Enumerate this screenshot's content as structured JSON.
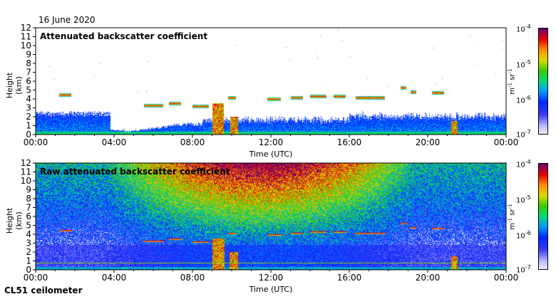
{
  "date": "16 June 2020",
  "instrument": "CL51 ceilometer",
  "chart_data": [
    {
      "type": "heatmap",
      "title": "Attenuated backscatter coefficient",
      "xlabel": "Time (UTC)",
      "ylabel": "Height (km)",
      "xticks": [
        "00:00",
        "04:00",
        "08:00",
        "12:00",
        "16:00",
        "20:00",
        "00:00"
      ],
      "xlim_hours": [
        0,
        24
      ],
      "ylim_km": [
        0,
        12
      ],
      "yticks": [
        "0",
        "1",
        "2",
        "3",
        "4",
        "5",
        "6",
        "7",
        "8",
        "9",
        "10",
        "11",
        "12"
      ],
      "colorbar": {
        "label_base": "m",
        "label_exp1": "-1",
        "label_mid": " sr",
        "label_exp2": "-1",
        "ticks": [
          {
            "base": "10",
            "exp": "-4"
          },
          {
            "base": "10",
            "exp": "-5"
          },
          {
            "base": "10",
            "exp": "-6"
          },
          {
            "base": "10",
            "exp": "-7"
          }
        ],
        "log_range": [
          -7,
          -4
        ]
      },
      "features": {
        "boundary_layer_top_km": 2.5,
        "clouds": [
          {
            "t0": 1.2,
            "t1": 1.8,
            "h": 4.5
          },
          {
            "t0": 5.5,
            "t1": 6.5,
            "h": 3.3
          },
          {
            "t0": 6.8,
            "t1": 7.4,
            "h": 3.5
          },
          {
            "t0": 8.0,
            "t1": 8.8,
            "h": 3.2
          },
          {
            "t0": 9.8,
            "t1": 10.2,
            "h": 4.2
          },
          {
            "t0": 11.8,
            "t1": 12.5,
            "h": 4.0
          },
          {
            "t0": 13.0,
            "t1": 13.6,
            "h": 4.2
          },
          {
            "t0": 14.0,
            "t1": 14.8,
            "h": 4.3
          },
          {
            "t0": 15.2,
            "t1": 15.8,
            "h": 4.3
          },
          {
            "t0": 16.3,
            "t1": 17.8,
            "h": 4.2
          },
          {
            "t0": 18.6,
            "t1": 18.9,
            "h": 5.3
          },
          {
            "t0": 19.1,
            "t1": 19.4,
            "h": 4.8
          },
          {
            "t0": 20.2,
            "t1": 20.8,
            "h": 4.7
          }
        ],
        "precipitation": [
          {
            "t0": 9.0,
            "t1": 9.6,
            "h": 3.5
          },
          {
            "t0": 9.9,
            "t1": 10.3,
            "h": 2.0
          },
          {
            "t0": 21.2,
            "t1": 21.5,
            "h": 1.5
          }
        ]
      }
    },
    {
      "type": "heatmap",
      "title": "Raw attenuated backscatter coefficient",
      "xlabel": "Time (UTC)",
      "ylabel": "Height (km)",
      "xticks": [
        "00:00",
        "04:00",
        "08:00",
        "12:00",
        "16:00",
        "20:00",
        "00:00"
      ],
      "xlim_hours": [
        0,
        24
      ],
      "ylim_km": [
        0,
        12
      ],
      "yticks": [
        "0",
        "1",
        "2",
        "3",
        "4",
        "5",
        "6",
        "7",
        "8",
        "9",
        "10",
        "11",
        "12"
      ],
      "colorbar": {
        "label_base": "m",
        "label_exp1": "-1",
        "label_mid": " sr",
        "label_exp2": "-1",
        "ticks": [
          {
            "base": "10",
            "exp": "-4"
          },
          {
            "base": "10",
            "exp": "-5"
          },
          {
            "base": "10",
            "exp": "-6"
          },
          {
            "base": "10",
            "exp": "-7"
          }
        ],
        "log_range": [
          -7,
          -4
        ]
      }
    }
  ]
}
